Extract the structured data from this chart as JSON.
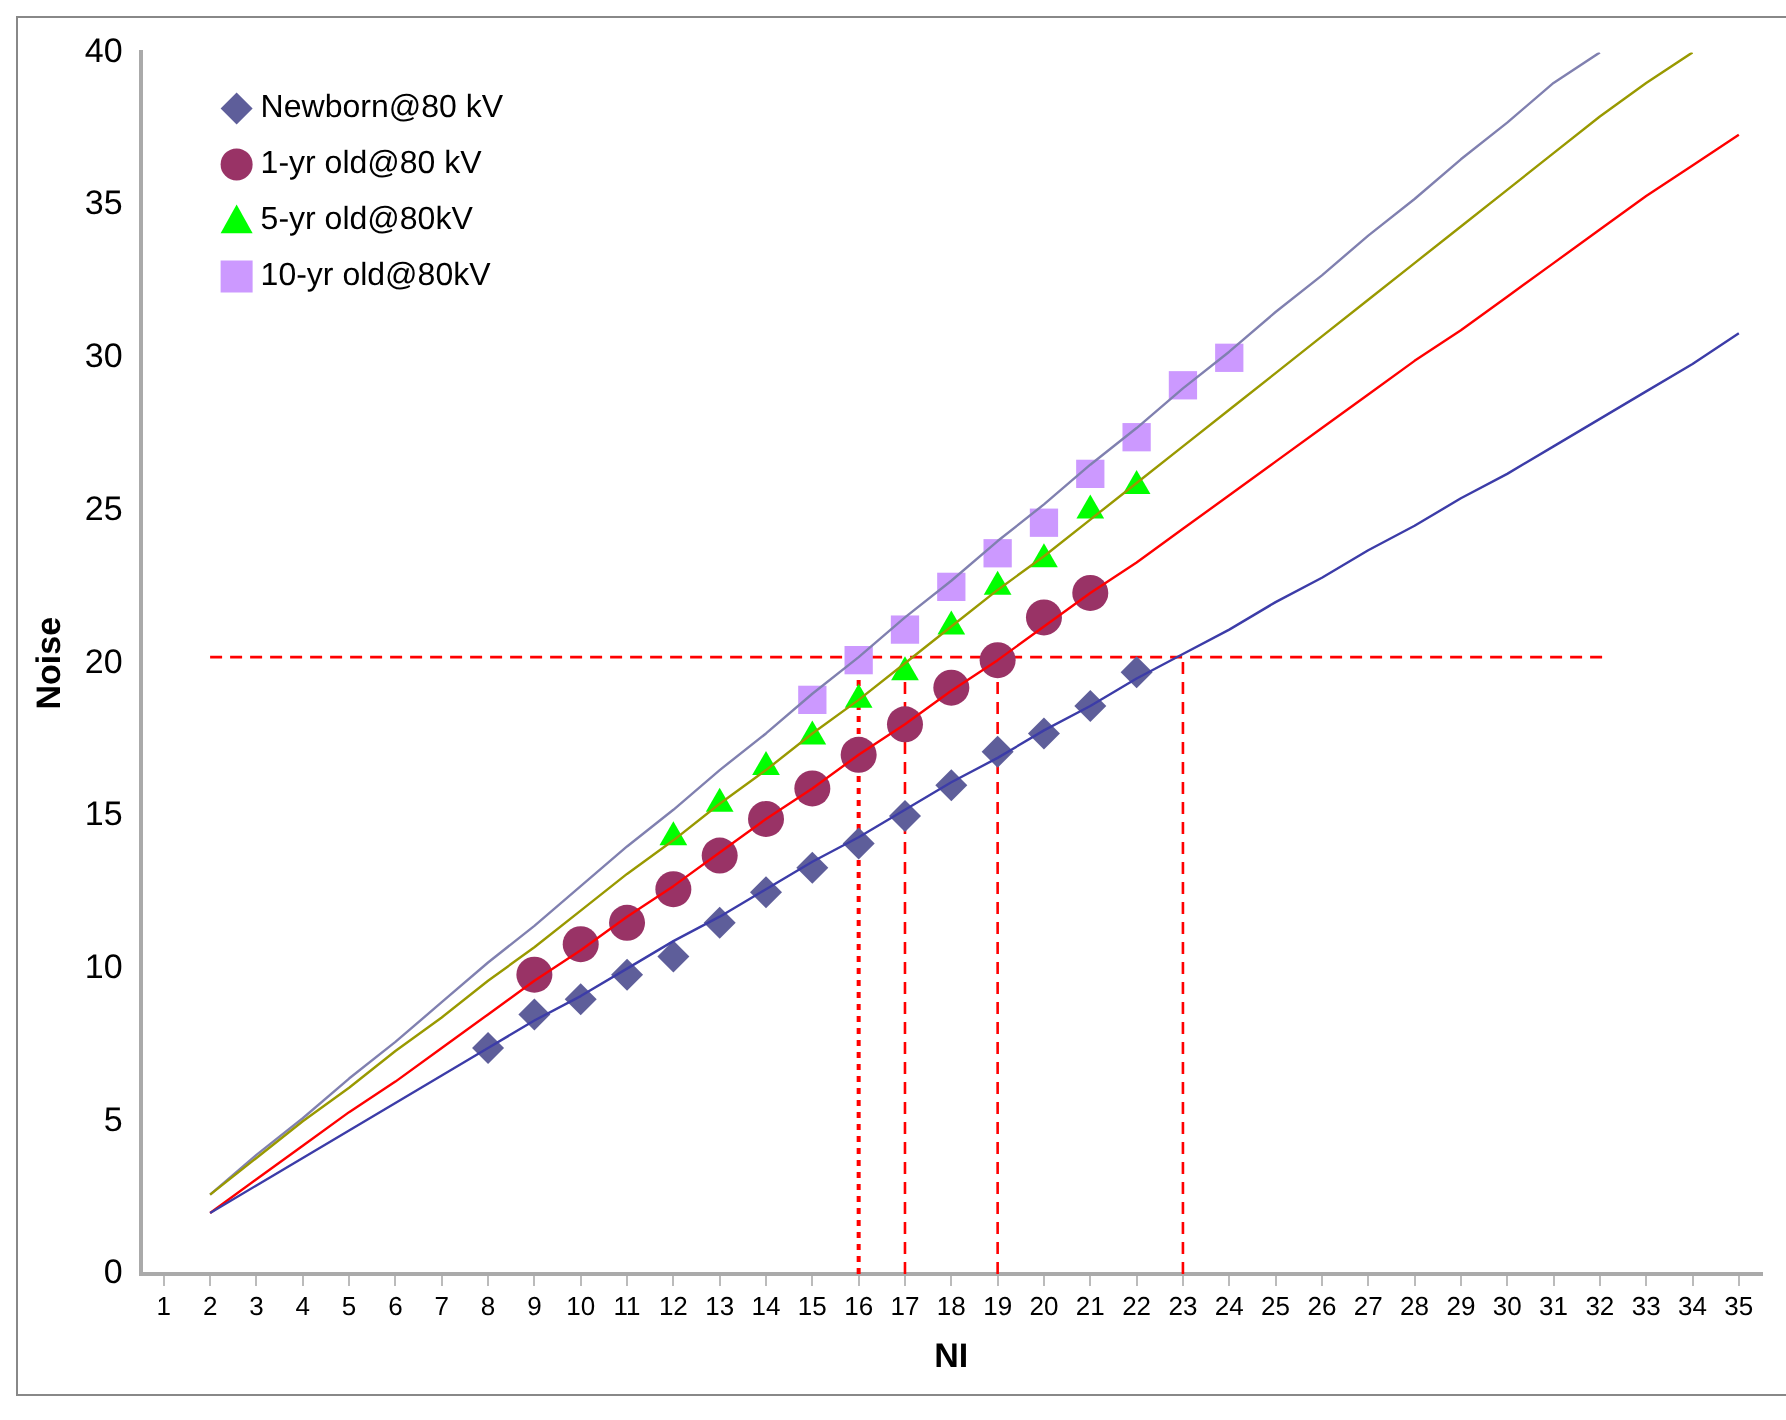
{
  "chart_data": {
    "type": "line",
    "xlabel": "NI",
    "ylabel": "Noise",
    "x": [
      2,
      3,
      4,
      5,
      6,
      7,
      8,
      9,
      10,
      11,
      12,
      13,
      14,
      15,
      16,
      17,
      18,
      19,
      20,
      21,
      22,
      23,
      24,
      25,
      26,
      27,
      28,
      29,
      30,
      31,
      32,
      33,
      34,
      35
    ],
    "xlim": [
      0.5,
      35.5
    ],
    "xticks": [
      1,
      2,
      3,
      4,
      5,
      6,
      7,
      8,
      9,
      10,
      11,
      12,
      13,
      14,
      15,
      16,
      17,
      18,
      19,
      20,
      21,
      22,
      23,
      24,
      25,
      26,
      27,
      28,
      29,
      30,
      31,
      32,
      33,
      34,
      35
    ],
    "ylim": [
      0,
      40
    ],
    "yticks": [
      0,
      5,
      10,
      15,
      20,
      25,
      30,
      35,
      40
    ],
    "grid": false,
    "legend": "top left",
    "series": [
      {
        "type": "line",
        "color": "#3c3ca8",
        "marker": "none",
        "values": [
          2.0,
          2.9,
          3.8,
          4.7,
          5.6,
          6.5,
          7.4,
          8.3,
          9.1,
          10.0,
          10.9,
          11.7,
          12.6,
          13.5,
          14.3,
          15.2,
          16.1,
          16.9,
          17.8,
          18.6,
          19.5,
          20.3,
          21.1,
          22.0,
          22.8,
          23.7,
          24.5,
          25.4,
          26.2,
          27.1,
          28.0,
          28.9,
          29.8,
          30.8
        ]
      },
      {
        "type": "line",
        "color": "#ff0000",
        "marker": "none",
        "values": [
          2.0,
          3.1,
          4.2,
          5.3,
          6.3,
          7.4,
          8.5,
          9.6,
          10.6,
          11.7,
          12.7,
          13.8,
          14.9,
          15.9,
          17.0,
          18.0,
          19.1,
          20.1,
          21.2,
          22.3,
          23.3,
          24.4,
          25.5,
          26.6,
          27.7,
          28.8,
          29.9,
          30.9,
          32.0,
          33.1,
          34.2,
          35.3,
          36.3,
          37.3
        ]
      },
      {
        "type": "line",
        "color": "#999900",
        "marker": "none",
        "values": [
          2.6,
          3.8,
          5.0,
          6.1,
          7.3,
          8.4,
          9.6,
          10.7,
          11.9,
          13.1,
          14.2,
          15.4,
          16.5,
          17.7,
          18.8,
          20.0,
          21.2,
          22.4,
          23.5,
          24.7,
          25.9,
          27.1,
          28.3,
          29.5,
          30.7,
          31.9,
          33.1,
          34.3,
          35.5,
          36.7,
          37.9,
          39.0,
          40.0,
          null
        ]
      },
      {
        "type": "line",
        "color": "#8080b0",
        "marker": "none",
        "values": [
          2.6,
          3.9,
          5.1,
          6.4,
          7.6,
          8.9,
          10.2,
          11.4,
          12.7,
          14.0,
          15.2,
          16.5,
          17.7,
          19.0,
          20.2,
          21.5,
          22.7,
          24.0,
          25.2,
          26.5,
          27.7,
          29.0,
          30.2,
          31.5,
          32.7,
          34.0,
          35.2,
          36.5,
          37.7,
          39.0,
          40.0,
          null,
          null,
          null
        ]
      },
      {
        "type": "scatter",
        "name": "Newborn@80 kV",
        "color": "#5e5e9a",
        "marker": "diamond",
        "values": [
          null,
          null,
          null,
          null,
          null,
          null,
          7.4,
          8.5,
          9.0,
          9.8,
          10.4,
          11.5,
          12.5,
          13.3,
          14.1,
          15.0,
          16.0,
          17.1,
          17.7,
          18.6,
          19.7,
          null,
          null,
          null,
          null,
          null,
          null,
          null,
          null,
          null,
          null,
          null,
          null,
          null
        ]
      },
      {
        "type": "scatter",
        "name": "1-yr old@80 kV",
        "color": "#993366",
        "marker": "circle",
        "values": [
          null,
          null,
          null,
          null,
          null,
          null,
          null,
          9.8,
          10.8,
          11.5,
          12.6,
          13.7,
          14.9,
          15.9,
          17.0,
          18.0,
          19.2,
          20.1,
          21.5,
          22.3,
          null,
          null,
          null,
          null,
          null,
          null,
          null,
          null,
          null,
          null,
          null,
          null,
          null,
          null
        ]
      },
      {
        "type": "scatter",
        "name": "5-yr old@80kV",
        "color": "#00ff00",
        "marker": "triangle",
        "values": [
          null,
          null,
          null,
          null,
          null,
          null,
          null,
          null,
          null,
          null,
          14.3,
          15.4,
          16.6,
          17.6,
          18.8,
          19.7,
          21.2,
          22.5,
          23.4,
          25.0,
          25.8,
          null,
          null,
          null,
          null,
          null,
          null,
          null,
          null,
          null,
          null,
          null,
          null,
          null
        ]
      },
      {
        "type": "scatter",
        "name": "10-yr old@80kV",
        "color": "#cc99ff",
        "marker": "square",
        "values": [
          null,
          null,
          null,
          null,
          null,
          null,
          null,
          null,
          null,
          null,
          null,
          null,
          null,
          18.8,
          20.1,
          21.1,
          22.5,
          23.6,
          24.6,
          26.2,
          27.4,
          29.1,
          30.0,
          null,
          null,
          null,
          null,
          null,
          null,
          null,
          null,
          null,
          null,
          null
        ]
      }
    ],
    "ref_lines": [
      {
        "axis": "y",
        "value": 20.2,
        "color": "#ff0000",
        "line_style": "dashed"
      },
      {
        "axis": "x",
        "value": 16,
        "color": "#ff0000",
        "line_style": "dotted"
      },
      {
        "axis": "x",
        "value": 17,
        "color": "#ff0000",
        "line_style": "dashed"
      },
      {
        "axis": "x",
        "value": 19,
        "color": "#ff0000",
        "line_style": "dashed"
      },
      {
        "axis": "x",
        "value": 23,
        "color": "#ff0000",
        "line_style": "dashed"
      }
    ]
  }
}
